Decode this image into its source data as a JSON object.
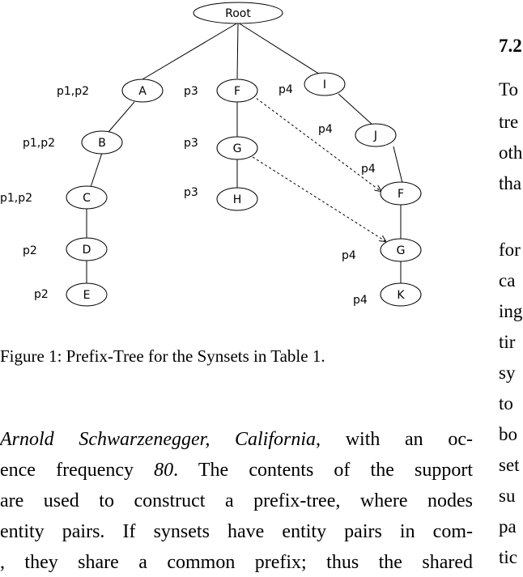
{
  "figure": {
    "nodes": {
      "root": "Root",
      "A": "A",
      "B": "B",
      "C": "C",
      "D": "D",
      "E": "E",
      "F1": "F",
      "G1": "G",
      "H": "H",
      "I": "I",
      "J": "J",
      "F2": "F",
      "G2": "G",
      "K": "K"
    },
    "path_labels": {
      "A": "p1,p2",
      "B": "p1,p2",
      "C": "p1,p2",
      "D": "p2",
      "E": "p2",
      "F1": "p3",
      "G1": "p3",
      "H": "p3",
      "I": "p4",
      "J": "p4",
      "F2": "p4",
      "G2": "p4",
      "K": "p4"
    },
    "caption": "Figure 1: Prefix-Tree for the Synsets in Table 1."
  },
  "right_column": {
    "heading": "7.2",
    "lines": [
      "To",
      "tre",
      "oth",
      "tha",
      "",
      "for",
      "ca",
      "ing",
      "tir",
      "sy",
      "to",
      "bo",
      "set",
      "su",
      "pa",
      "tic"
    ]
  },
  "body": {
    "line1": {
      "italic": "Arnold Schwarzenegger, California",
      "middle": ", with an oc-",
      "rest": ""
    },
    "line2": {
      "text": "ence frequency ",
      "italic": "80",
      "rest": ". The contents of the support"
    },
    "line3": "are used to construct a prefix-tree, where nodes",
    "line4": "entity pairs. If synsets have entity pairs in com-",
    "line5": ", they share a common prefix; thus the shared"
  }
}
